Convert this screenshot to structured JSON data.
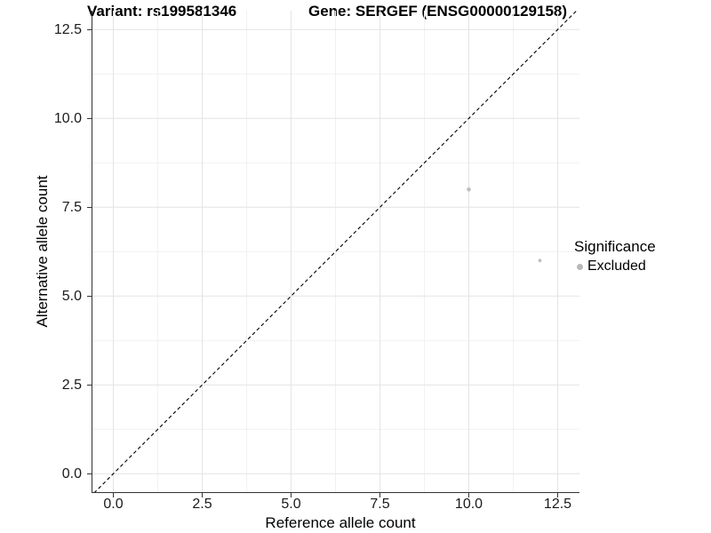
{
  "titles": {
    "variant": "Variant: rs199581346",
    "gene": "Gene: SERGEF (ENSG00000129158)"
  },
  "axes": {
    "x": {
      "label": "Reference allele count",
      "tick_labels": [
        "0.0",
        "2.5",
        "5.0",
        "7.5",
        "10.0",
        "12.5"
      ]
    },
    "y": {
      "label": "Alternative allele count",
      "tick_labels": [
        "0.0",
        "2.5",
        "5.0",
        "7.5",
        "10.0",
        "12.5"
      ]
    }
  },
  "legend": {
    "title": "Significance",
    "items": [
      {
        "label": "Excluded",
        "swatch_color": "#b9b9b9"
      }
    ]
  },
  "chart_data": {
    "type": "scatter",
    "title": "Variant: rs199581346 / Gene: SERGEF (ENSG00000129158)",
    "xlabel": "Reference allele count",
    "ylabel": "Alternative allele count",
    "xlim": [
      -0.625,
      13.125
    ],
    "ylim": [
      -0.625,
      13.125
    ],
    "x_ticks": [
      0.0,
      2.5,
      5.0,
      7.5,
      10.0,
      12.5
    ],
    "y_ticks": [
      0.0,
      2.5,
      5.0,
      7.5,
      10.0,
      12.5
    ],
    "x_minor_ticks": [
      1.25,
      3.75,
      6.25,
      8.75,
      11.25
    ],
    "y_minor_ticks": [
      1.25,
      3.75,
      6.25,
      8.75,
      11.25
    ],
    "grid": true,
    "legend_position": "right",
    "identity_line": {
      "equation": "y = x",
      "style": "dashed",
      "color": "#000000"
    },
    "series": [
      {
        "name": "Excluded",
        "color": "#bebebe",
        "points": [
          {
            "x": 10,
            "y": 8,
            "r": 2.3
          },
          {
            "x": 12,
            "y": 6,
            "r": 1.9
          }
        ]
      }
    ],
    "colors": {
      "major_grid": "#e4e4e4",
      "minor_grid": "#f1f1f1",
      "axis_line": "#333333"
    }
  }
}
